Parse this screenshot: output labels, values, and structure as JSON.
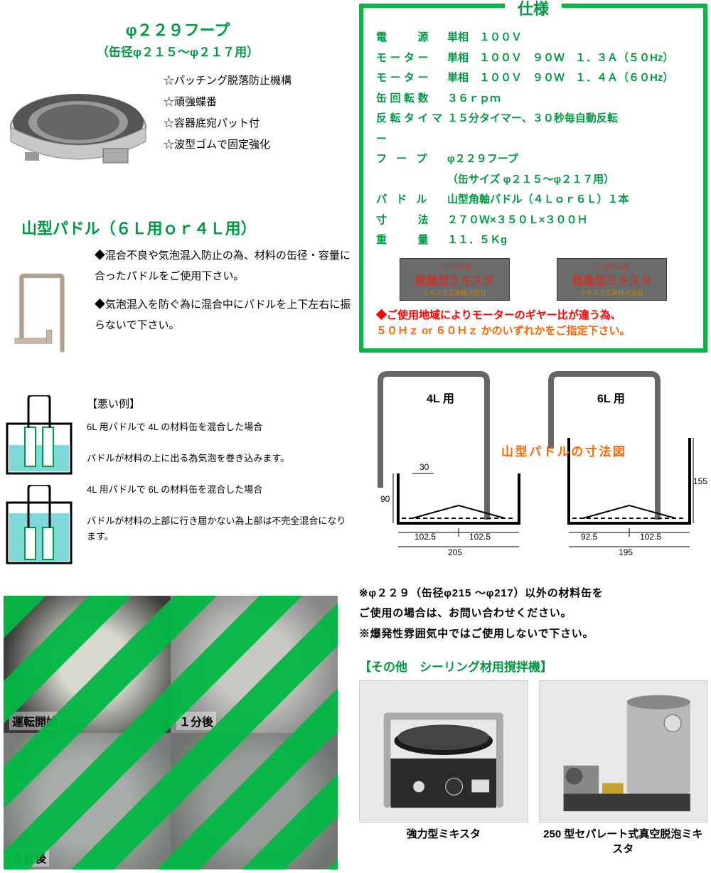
{
  "hoop": {
    "title": "φ２２９フープ",
    "subtitle": "（缶径φ２１５～φ２１７用）",
    "features": [
      "☆パッチング脱落防止機構",
      "☆頑強蝶番",
      "☆容器底宛パット付",
      "☆波型ゴムで固定強化"
    ]
  },
  "paddle": {
    "title": "山型パドル（６Ｌ用ｏｒ４Ｌ用）",
    "note1": "◆混合不良や気泡混入防止の為、材料の缶径・容量に合ったパドルをご使用下さい。",
    "note2": "◆気泡混入を防ぐ為に混合中にパドルを上下左右に振らないで下さい。"
  },
  "bad": {
    "title": "【悪い例】",
    "case1_title": "6L 用パドルで 4L の材料缶を混合した場合",
    "case1_desc": "パドルが材料の上に出る為気泡を巻き込みます。",
    "case2_title": "4L 用パドルで 6L の材料缶を混合した場合",
    "case2_desc": "パドルが材料の上部に行き届かない為上部は不完全混合になります。"
  },
  "progress": {
    "labels": [
      "運転開始",
      "１分後",
      "５分後",
      ""
    ]
  },
  "spec": {
    "title": "仕様",
    "rows": [
      {
        "label": "電　　源",
        "val": "単相　１００Ｖ"
      },
      {
        "label": "モーター",
        "val": "単相　１００Ｖ　９０Ｗ　１．３Ａ（５０Hz）"
      },
      {
        "label": "モーター",
        "val": "単相　１００Ｖ　９０Ｗ　１．４Ａ（６０Hz）"
      },
      {
        "label": "缶回転数",
        "val": "３６ｒｐｍ"
      },
      {
        "label": "反転タイマー",
        "val": "１５分タイマー、３０秒毎自動反転"
      },
      {
        "label": "フ ー プ",
        "val": "φ２２９フープ"
      },
      {
        "label": "",
        "val": "（缶サイズ φ２１５～φ２１７用）"
      },
      {
        "label": "パ ド ル",
        "val": "山型角軸パドル（４Ｌｏｒ６Ｌ）１本"
      },
      {
        "label": "寸　　法",
        "val": "２７０Ｗ×３５０Ｌ×３００Ｈ"
      },
      {
        "label": "重　　量",
        "val": "１１．５Ｋg"
      }
    ],
    "badge_line1": "５０Hz仕様",
    "badge_line2": "軽量型ミキスタ",
    "badge_line3": "ミキスタ工業株式会社",
    "badge2_line1": "６０Hz仕様",
    "warn1": "◆ご使用地域によりモーターのギヤー比が違う為、",
    "warn2": "５０Ｈｚ or ６０Ｈｚ かのいずれかをご指定下さい。"
  },
  "dim": {
    "title": "山型パドルの寸法図",
    "l4": "4L 用",
    "l6": "6L 用",
    "d_30": "30",
    "d_90": "90",
    "d_1025": "102.5",
    "d_1025b": "102.5",
    "d_205": "205",
    "d_155": "155",
    "d_925": "92.5",
    "d_1025c": "102.5",
    "d_195": "195"
  },
  "notes": {
    "n1": "※φ２２９（缶径φ215 ～φ217）以外の材料缶を",
    "n2": "ご使用の場合は、お問い合わせください。",
    "n3": "※爆発性雰囲気中ではご使用しないで下さい。"
  },
  "other": {
    "title": "【その他　シーリング材用撹拌機】",
    "cap1": "強力型ミキスタ",
    "cap2": "250 型セパレート式真空脱泡ミキスタ"
  },
  "colors": {
    "green": "#009944",
    "border_green": "#00b843",
    "orange": "#ff6600",
    "red": "#ff0000"
  }
}
